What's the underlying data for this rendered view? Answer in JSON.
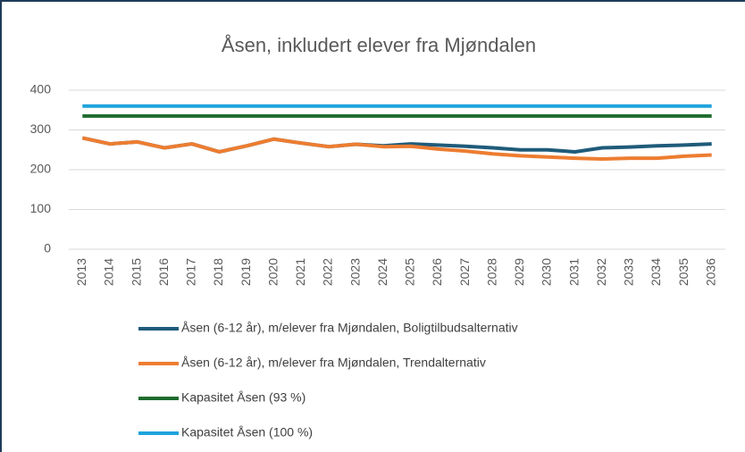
{
  "chart_data": {
    "type": "line",
    "title": "Åsen, inkludert elever fra Mjøndalen",
    "categories": [
      "2013",
      "2014",
      "2015",
      "2016",
      "2017",
      "2018",
      "2019",
      "2020",
      "2021",
      "2022",
      "2023",
      "2024",
      "2025",
      "2026",
      "2027",
      "2028",
      "2029",
      "2030",
      "2031",
      "2032",
      "2033",
      "2034",
      "2035",
      "2036"
    ],
    "series": [
      {
        "name": "Åsen (6-12 år), m/elever fra Mjøndalen, Boligtilbudsalternativ",
        "color": "#1f5b7a",
        "values": [
          280,
          265,
          270,
          255,
          265,
          245,
          260,
          277,
          267,
          258,
          264,
          260,
          265,
          262,
          259,
          255,
          250,
          250,
          245,
          255,
          257,
          260,
          262,
          265
        ]
      },
      {
        "name": "Åsen (6-12 år), m/elever fra Mjøndalen, Trendalternativ",
        "color": "#ed7d31",
        "values": [
          280,
          265,
          270,
          255,
          265,
          245,
          260,
          277,
          267,
          258,
          264,
          258,
          259,
          252,
          247,
          240,
          235,
          232,
          229,
          227,
          229,
          229,
          234,
          237
        ]
      },
      {
        "name": "Kapasitet Åsen (93 %)",
        "color": "#1e6b2e",
        "values": [
          335,
          335,
          335,
          335,
          335,
          335,
          335,
          335,
          335,
          335,
          335,
          335,
          335,
          335,
          335,
          335,
          335,
          335,
          335,
          335,
          335,
          335,
          335,
          335
        ]
      },
      {
        "name": "Kapasitet Åsen (100 %)",
        "color": "#1fa3dd",
        "values": [
          360,
          360,
          360,
          360,
          360,
          360,
          360,
          360,
          360,
          360,
          360,
          360,
          360,
          360,
          360,
          360,
          360,
          360,
          360,
          360,
          360,
          360,
          360,
          360
        ]
      }
    ],
    "ylim": [
      0,
      400
    ],
    "yticks": [
      0,
      100,
      200,
      300,
      400
    ],
    "grid": true
  }
}
